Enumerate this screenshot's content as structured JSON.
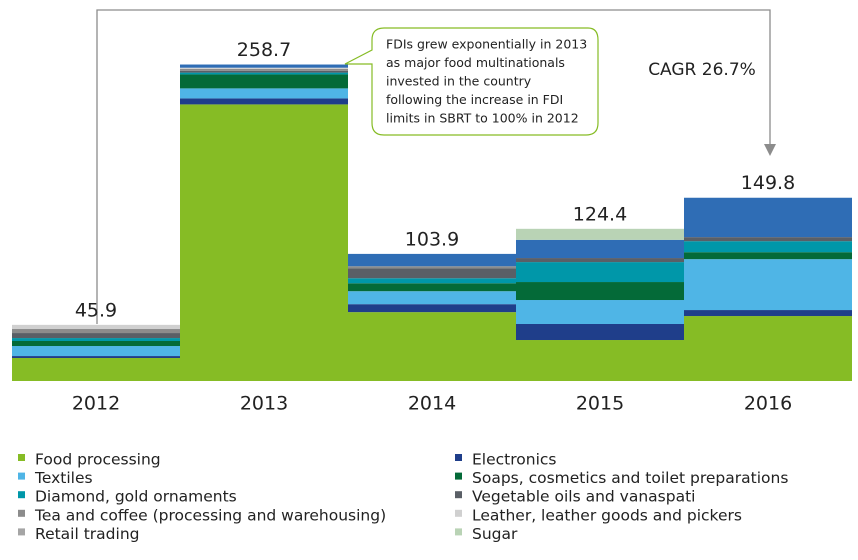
{
  "chart_data": {
    "type": "stacked-bar",
    "categories": [
      "2012",
      "2013",
      "2014",
      "2015",
      "2016"
    ],
    "totals": [
      45.9,
      258.7,
      103.9,
      124.4,
      149.8
    ],
    "series": [
      {
        "name": "Food processing",
        "color": "#86bc25",
        "values": [
          18.8,
          226.1,
          56.3,
          33.5,
          53.1
        ]
      },
      {
        "name": "Electronics",
        "color": "#1f3e8a",
        "values": [
          1.6,
          4.9,
          6.5,
          13.1,
          4.9
        ]
      },
      {
        "name": "Textiles",
        "color": "#4fb5e6",
        "values": [
          8.2,
          8.2,
          10.6,
          19.6,
          41.6
        ]
      },
      {
        "name": "Soaps, cosmetics and toilet preparations",
        "color": "#046a38",
        "values": [
          4.1,
          11.4,
          6.5,
          14.7,
          5.7
        ]
      },
      {
        "name": "Diamond, gold ornaments",
        "color": "#0097a9",
        "values": [
          2.4,
          1.5,
          4.1,
          16.3,
          9.0
        ]
      },
      {
        "name": "Vegetable oils and vanaspati",
        "color": "#5a5f66",
        "values": [
          4.1,
          1.5,
          8.2,
          3.3,
          3.3
        ]
      },
      {
        "name": "Tea and coffee (processing and warehousing)",
        "color": "#8c8c8c",
        "values": [
          3.3,
          1.5,
          1.6,
          0,
          0
        ]
      },
      {
        "name": "Retail trading",
        "color": "#a5a5a5",
        "values": [
          0,
          0,
          0,
          0,
          0
        ]
      },
      {
        "name": "Leather, leather goods and pickers",
        "color": "#d0d0d0",
        "values": [
          3.4,
          1.0,
          0,
          0,
          0
        ]
      },
      {
        "name": null,
        "color": "#2f6db5",
        "values": [
          0,
          2.6,
          10.1,
          14.9,
          32.2
        ]
      },
      {
        "name": "Sugar",
        "color": "#b9d3b5",
        "values": [
          0,
          0,
          0,
          9.0,
          0
        ]
      }
    ],
    "ylim": [
      0,
      300
    ],
    "annotation": [
      "FDIs grew exponentially in 2013",
      "as major food multinationals",
      "invested in the country",
      "following the increase in FDI",
      "limits in SBRT to 100% in 2012"
    ],
    "cagr_label": "CAGR 26.7%"
  }
}
